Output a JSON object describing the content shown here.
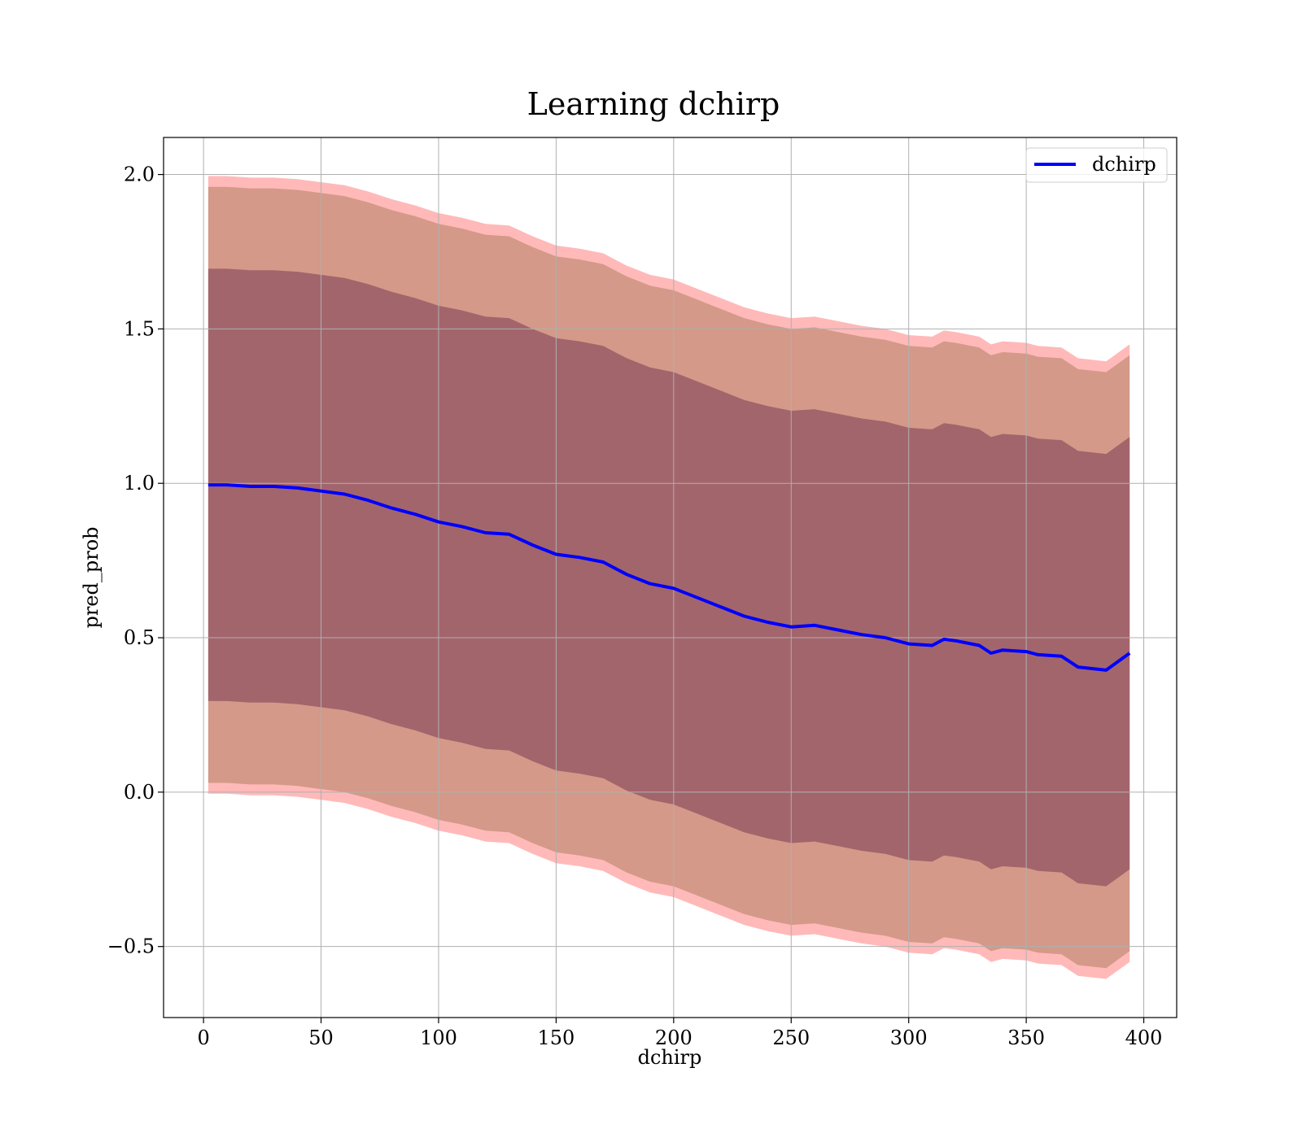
{
  "chart_data": {
    "type": "line",
    "title": "Learning dchirp",
    "xlabel": "dchirp",
    "ylabel": "pred_prob",
    "xlim": [
      -17,
      414
    ],
    "ylim": [
      -0.73,
      2.12
    ],
    "xticks": [
      0,
      50,
      100,
      150,
      200,
      250,
      300,
      350,
      400
    ],
    "xtick_labels": [
      "0",
      "50",
      "100",
      "150",
      "200",
      "250",
      "300",
      "350",
      "400"
    ],
    "yticks": [
      -0.5,
      0.0,
      0.5,
      1.0,
      1.5,
      2.0
    ],
    "ytick_labels": [
      "−0.5",
      "0.0",
      "0.5",
      "1.0",
      "1.5",
      "2.0"
    ],
    "grid": true,
    "legend_position": "top-right",
    "x": [
      2,
      10,
      20,
      30,
      40,
      50,
      60,
      70,
      80,
      90,
      100,
      110,
      120,
      130,
      140,
      150,
      160,
      170,
      180,
      190,
      200,
      210,
      220,
      230,
      240,
      250,
      260,
      270,
      280,
      290,
      300,
      310,
      315,
      320,
      330,
      335,
      340,
      350,
      355,
      365,
      372,
      384,
      394
    ],
    "series": [
      {
        "name": "dchirp",
        "color": "#0000ff",
        "values": [
          0.995,
          0.995,
          0.99,
          0.99,
          0.985,
          0.975,
          0.965,
          0.945,
          0.92,
          0.9,
          0.875,
          0.86,
          0.84,
          0.835,
          0.8,
          0.77,
          0.76,
          0.745,
          0.705,
          0.675,
          0.66,
          0.63,
          0.6,
          0.57,
          0.55,
          0.535,
          0.54,
          0.525,
          0.51,
          0.5,
          0.48,
          0.475,
          0.495,
          0.49,
          0.475,
          0.45,
          0.46,
          0.455,
          0.445,
          0.44,
          0.405,
          0.395,
          0.45
        ]
      }
    ],
    "bands": [
      {
        "upper_offset": 1.0,
        "color": "#ff8080",
        "opacity": 0.55
      },
      {
        "upper_offset": 0.965,
        "color": "#b08060",
        "opacity": 0.55
      },
      {
        "upper_offset": 0.7,
        "color": "#7a3a55",
        "opacity": 0.55
      }
    ]
  }
}
